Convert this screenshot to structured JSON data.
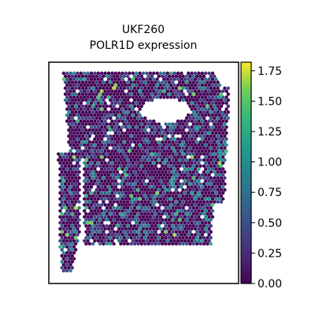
{
  "chart_data": {
    "type": "scatter",
    "title_line1": "UKF260",
    "title_line2": "POLR1D expression",
    "xlabel": "",
    "ylabel": "",
    "colorbar": {
      "colormap": "viridis",
      "range": [
        0,
        1.82
      ],
      "ticks": [
        0.0,
        0.25,
        0.5,
        0.75,
        1.0,
        1.25,
        1.5,
        1.75
      ],
      "tick_labels": [
        "0.00",
        "0.25",
        "0.50",
        "0.75",
        "1.00",
        "1.25",
        "1.50",
        "1.75"
      ]
    },
    "colors": {
      "low": "#440154",
      "mid": "#21918c",
      "high": "#fde725"
    },
    "grid": false,
    "legend": "colorbar-right"
  }
}
